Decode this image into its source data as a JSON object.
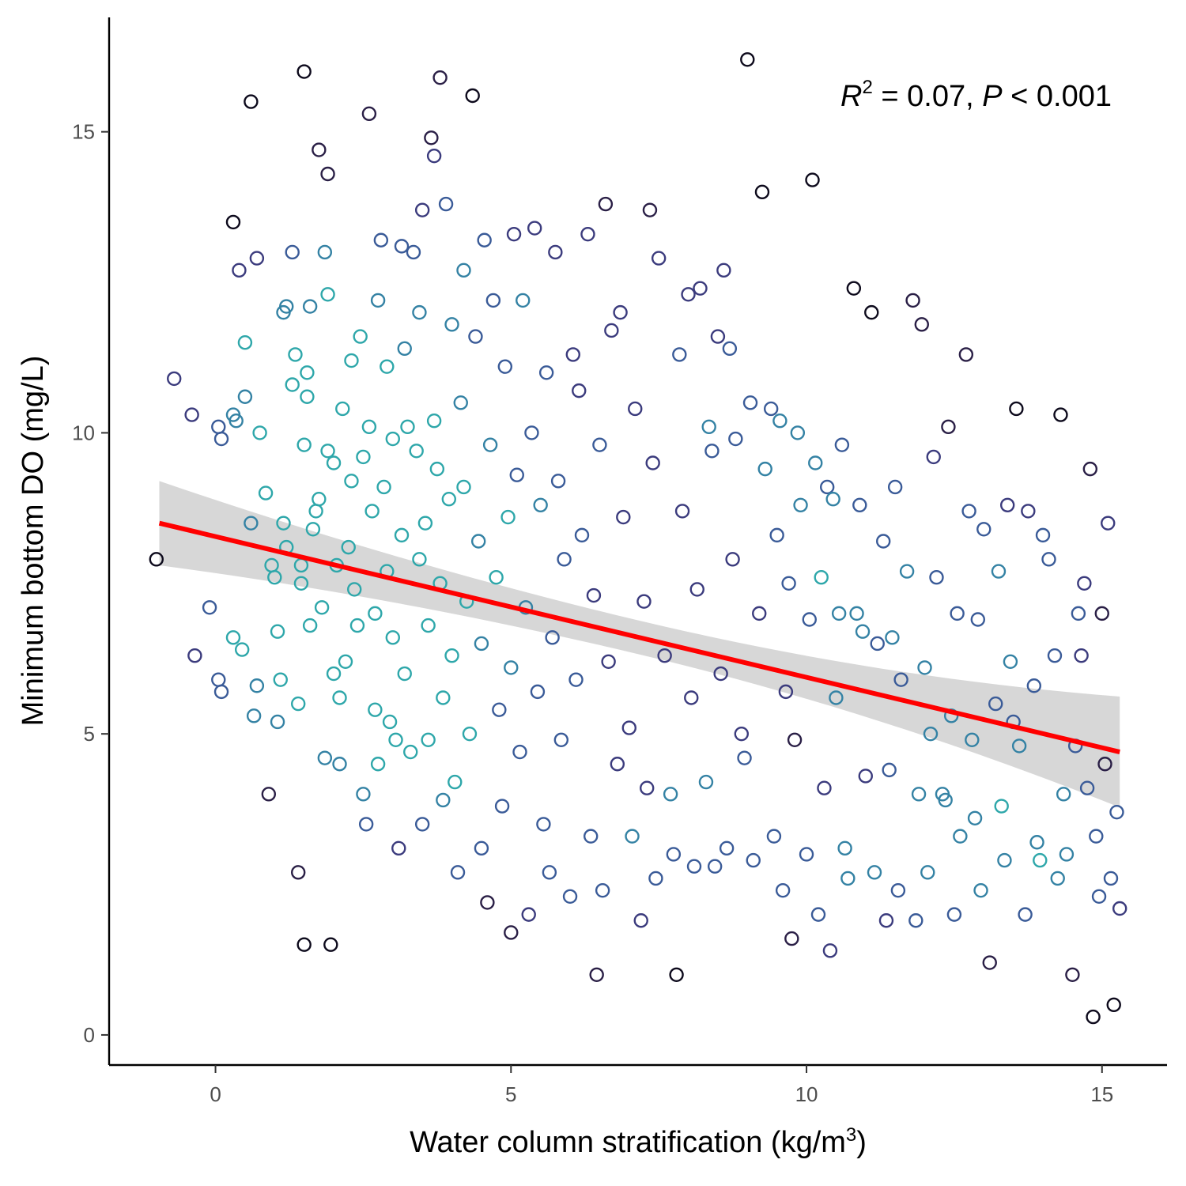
{
  "chart_data": {
    "type": "scatter",
    "xlabel_main": "Water column stratification (kg/m",
    "xlabel_sup": "3",
    "xlabel_end": ")",
    "ylabel": "Minimum bottom DO (mg/L)",
    "xlim": [
      -1.8,
      16.1
    ],
    "ylim": [
      -0.5,
      16.9
    ],
    "xticks": [
      0,
      5,
      10,
      15
    ],
    "yticks": [
      0,
      5,
      10,
      15
    ],
    "grid": false,
    "legend": "none",
    "annotation": {
      "r_label": "R",
      "r_sup": "2",
      "r_value": " = 0.07, ",
      "p_label": "P",
      "p_value": " < 0.001"
    },
    "regression": {
      "x_start": -0.95,
      "x_end": 15.3,
      "y_start": 8.5,
      "y_end": 4.7,
      "ci_start": 0.7,
      "ci_end": 0.92,
      "color": "#ff0000",
      "ci_color": "#d3d3d3"
    },
    "density_colors": [
      "#0d0a1c",
      "#2a1f46",
      "#3b3b7d",
      "#3a5b98",
      "#3482a4",
      "#2ea7aa"
    ],
    "points": [
      [
        -1.0,
        7.9
      ],
      [
        -0.7,
        10.9
      ],
      [
        -0.4,
        10.3
      ],
      [
        -0.35,
        6.3
      ],
      [
        -0.1,
        7.1
      ],
      [
        0.05,
        10.1
      ],
      [
        0.05,
        5.9
      ],
      [
        0.1,
        9.9
      ],
      [
        0.1,
        5.7
      ],
      [
        0.3,
        13.5
      ],
      [
        0.3,
        6.6
      ],
      [
        0.3,
        10.3
      ],
      [
        0.35,
        10.2
      ],
      [
        0.4,
        12.7
      ],
      [
        0.45,
        6.4
      ],
      [
        0.5,
        10.6
      ],
      [
        0.5,
        11.5
      ],
      [
        0.6,
        8.5
      ],
      [
        0.6,
        15.5
      ],
      [
        0.65,
        5.3
      ],
      [
        0.7,
        5.8
      ],
      [
        0.7,
        12.9
      ],
      [
        0.75,
        10.0
      ],
      [
        0.85,
        9.0
      ],
      [
        0.9,
        4.0
      ],
      [
        0.95,
        7.8
      ],
      [
        1.0,
        7.6
      ],
      [
        1.05,
        6.7
      ],
      [
        1.05,
        5.2
      ],
      [
        1.1,
        5.9
      ],
      [
        1.15,
        8.5
      ],
      [
        1.15,
        12.0
      ],
      [
        1.2,
        8.1
      ],
      [
        1.2,
        12.1
      ],
      [
        1.3,
        13.0
      ],
      [
        1.3,
        10.8
      ],
      [
        1.35,
        11.3
      ],
      [
        1.4,
        5.5
      ],
      [
        1.4,
        2.7
      ],
      [
        1.45,
        7.5
      ],
      [
        1.45,
        7.8
      ],
      [
        1.5,
        9.8
      ],
      [
        1.5,
        16.0
      ],
      [
        1.5,
        1.5
      ],
      [
        1.55,
        10.6
      ],
      [
        1.55,
        11.0
      ],
      [
        1.6,
        6.8
      ],
      [
        1.6,
        12.1
      ],
      [
        1.65,
        8.4
      ],
      [
        1.7,
        8.7
      ],
      [
        1.75,
        14.7
      ],
      [
        1.75,
        8.9
      ],
      [
        1.8,
        7.1
      ],
      [
        1.85,
        13.0
      ],
      [
        1.85,
        4.6
      ],
      [
        1.9,
        14.3
      ],
      [
        1.9,
        9.7
      ],
      [
        1.9,
        12.3
      ],
      [
        1.95,
        1.5
      ],
      [
        2.0,
        6.0
      ],
      [
        2.0,
        9.5
      ],
      [
        2.05,
        7.8
      ],
      [
        2.1,
        5.6
      ],
      [
        2.1,
        4.5
      ],
      [
        2.15,
        10.4
      ],
      [
        2.2,
        6.2
      ],
      [
        2.25,
        8.1
      ],
      [
        2.3,
        9.2
      ],
      [
        2.3,
        11.2
      ],
      [
        2.35,
        7.4
      ],
      [
        2.4,
        6.8
      ],
      [
        2.45,
        11.6
      ],
      [
        2.5,
        9.6
      ],
      [
        2.5,
        4.0
      ],
      [
        2.55,
        3.5
      ],
      [
        2.6,
        10.1
      ],
      [
        2.6,
        15.3
      ],
      [
        2.65,
        8.7
      ],
      [
        2.7,
        5.4
      ],
      [
        2.7,
        7.0
      ],
      [
        2.75,
        12.2
      ],
      [
        2.75,
        4.5
      ],
      [
        2.8,
        13.2
      ],
      [
        2.85,
        9.1
      ],
      [
        2.9,
        7.7
      ],
      [
        2.9,
        11.1
      ],
      [
        2.95,
        5.2
      ],
      [
        3.0,
        9.9
      ],
      [
        3.0,
        6.6
      ],
      [
        3.05,
        4.9
      ],
      [
        3.1,
        3.1
      ],
      [
        3.15,
        13.1
      ],
      [
        3.15,
        8.3
      ],
      [
        3.2,
        11.4
      ],
      [
        3.2,
        6.0
      ],
      [
        3.25,
        10.1
      ],
      [
        3.3,
        4.7
      ],
      [
        3.35,
        13.0
      ],
      [
        3.4,
        9.7
      ],
      [
        3.45,
        7.9
      ],
      [
        3.45,
        12.0
      ],
      [
        3.5,
        13.7
      ],
      [
        3.5,
        3.5
      ],
      [
        3.55,
        8.5
      ],
      [
        3.6,
        6.8
      ],
      [
        3.6,
        4.9
      ],
      [
        3.65,
        14.9
      ],
      [
        3.7,
        10.2
      ],
      [
        3.7,
        14.6
      ],
      [
        3.75,
        9.4
      ],
      [
        3.8,
        7.5
      ],
      [
        3.8,
        15.9
      ],
      [
        3.85,
        5.6
      ],
      [
        3.85,
        3.9
      ],
      [
        3.9,
        13.8
      ],
      [
        3.95,
        8.9
      ],
      [
        4.0,
        11.8
      ],
      [
        4.0,
        6.3
      ],
      [
        4.05,
        4.2
      ],
      [
        4.1,
        2.7
      ],
      [
        4.15,
        10.5
      ],
      [
        4.2,
        9.1
      ],
      [
        4.2,
        12.7
      ],
      [
        4.25,
        7.2
      ],
      [
        4.3,
        5.0
      ],
      [
        4.35,
        15.6
      ],
      [
        4.4,
        11.6
      ],
      [
        4.45,
        8.2
      ],
      [
        4.5,
        6.5
      ],
      [
        4.5,
        3.1
      ],
      [
        4.55,
        13.2
      ],
      [
        4.6,
        2.2
      ],
      [
        4.65,
        9.8
      ],
      [
        4.7,
        12.2
      ],
      [
        4.75,
        7.6
      ],
      [
        4.8,
        5.4
      ],
      [
        4.85,
        3.8
      ],
      [
        4.9,
        11.1
      ],
      [
        4.95,
        8.6
      ],
      [
        5.0,
        1.7
      ],
      [
        5.0,
        6.1
      ],
      [
        5.05,
        13.3
      ],
      [
        5.1,
        9.3
      ],
      [
        5.15,
        4.7
      ],
      [
        5.2,
        12.2
      ],
      [
        5.25,
        7.1
      ],
      [
        5.3,
        2.0
      ],
      [
        5.35,
        10.0
      ],
      [
        5.4,
        13.4
      ],
      [
        5.45,
        5.7
      ],
      [
        5.5,
        8.8
      ],
      [
        5.55,
        3.5
      ],
      [
        5.6,
        11.0
      ],
      [
        5.65,
        2.7
      ],
      [
        5.7,
        6.6
      ],
      [
        5.75,
        13.0
      ],
      [
        5.8,
        9.2
      ],
      [
        5.85,
        4.9
      ],
      [
        5.9,
        7.9
      ],
      [
        6.0,
        2.3
      ],
      [
        6.05,
        11.3
      ],
      [
        6.1,
        5.9
      ],
      [
        6.15,
        10.7
      ],
      [
        6.2,
        8.3
      ],
      [
        6.3,
        13.3
      ],
      [
        6.35,
        3.3
      ],
      [
        6.4,
        7.3
      ],
      [
        6.45,
        1.0
      ],
      [
        6.5,
        9.8
      ],
      [
        6.55,
        2.4
      ],
      [
        6.6,
        13.8
      ],
      [
        6.65,
        6.2
      ],
      [
        6.7,
        11.7
      ],
      [
        6.8,
        4.5
      ],
      [
        6.85,
        12.0
      ],
      [
        6.9,
        8.6
      ],
      [
        7.0,
        5.1
      ],
      [
        7.05,
        3.3
      ],
      [
        7.1,
        10.4
      ],
      [
        7.2,
        1.9
      ],
      [
        7.25,
        7.2
      ],
      [
        7.3,
        4.1
      ],
      [
        7.35,
        13.7
      ],
      [
        7.4,
        9.5
      ],
      [
        7.45,
        2.6
      ],
      [
        7.5,
        12.9
      ],
      [
        7.6,
        6.3
      ],
      [
        7.7,
        4.0
      ],
      [
        7.75,
        3.0
      ],
      [
        7.8,
        1.0
      ],
      [
        7.85,
        11.3
      ],
      [
        7.9,
        8.7
      ],
      [
        8.0,
        12.3
      ],
      [
        8.05,
        5.6
      ],
      [
        8.1,
        2.8
      ],
      [
        8.15,
        7.4
      ],
      [
        8.2,
        12.4
      ],
      [
        8.3,
        4.2
      ],
      [
        8.35,
        10.1
      ],
      [
        8.4,
        9.7
      ],
      [
        8.45,
        2.8
      ],
      [
        8.5,
        11.6
      ],
      [
        8.55,
        6.0
      ],
      [
        8.6,
        12.7
      ],
      [
        8.65,
        3.1
      ],
      [
        8.7,
        11.4
      ],
      [
        8.75,
        7.9
      ],
      [
        8.8,
        9.9
      ],
      [
        8.9,
        5.0
      ],
      [
        8.95,
        4.6
      ],
      [
        9.0,
        16.2
      ],
      [
        9.05,
        10.5
      ],
      [
        9.1,
        2.9
      ],
      [
        9.2,
        7.0
      ],
      [
        9.25,
        14.0
      ],
      [
        9.3,
        9.4
      ],
      [
        9.4,
        10.4
      ],
      [
        9.45,
        3.3
      ],
      [
        9.5,
        8.3
      ],
      [
        9.55,
        10.2
      ],
      [
        9.6,
        2.4
      ],
      [
        9.65,
        5.7
      ],
      [
        9.7,
        7.5
      ],
      [
        9.75,
        1.6
      ],
      [
        9.8,
        4.9
      ],
      [
        9.85,
        10.0
      ],
      [
        9.9,
        8.8
      ],
      [
        10.0,
        3.0
      ],
      [
        10.05,
        6.9
      ],
      [
        10.1,
        14.2
      ],
      [
        10.15,
        9.5
      ],
      [
        10.2,
        2.0
      ],
      [
        10.25,
        7.6
      ],
      [
        10.3,
        4.1
      ],
      [
        10.35,
        9.1
      ],
      [
        10.4,
        1.4
      ],
      [
        10.45,
        8.9
      ],
      [
        10.5,
        5.6
      ],
      [
        10.55,
        7.0
      ],
      [
        10.6,
        9.8
      ],
      [
        10.65,
        3.1
      ],
      [
        10.7,
        2.6
      ],
      [
        10.8,
        12.4
      ],
      [
        10.85,
        7.0
      ],
      [
        10.9,
        8.8
      ],
      [
        10.95,
        6.7
      ],
      [
        11.0,
        4.3
      ],
      [
        11.1,
        12.0
      ],
      [
        11.15,
        2.7
      ],
      [
        11.2,
        6.5
      ],
      [
        11.3,
        8.2
      ],
      [
        11.35,
        1.9
      ],
      [
        11.4,
        4.4
      ],
      [
        11.45,
        6.6
      ],
      [
        11.5,
        9.1
      ],
      [
        11.55,
        2.4
      ],
      [
        11.6,
        5.9
      ],
      [
        11.7,
        7.7
      ],
      [
        11.8,
        12.2
      ],
      [
        11.85,
        1.9
      ],
      [
        11.9,
        4.0
      ],
      [
        11.95,
        11.8
      ],
      [
        12.0,
        6.1
      ],
      [
        12.05,
        2.7
      ],
      [
        12.1,
        5.0
      ],
      [
        12.15,
        9.6
      ],
      [
        12.2,
        7.6
      ],
      [
        12.3,
        4.0
      ],
      [
        12.35,
        3.9
      ],
      [
        12.4,
        10.1
      ],
      [
        12.45,
        5.3
      ],
      [
        12.5,
        2.0
      ],
      [
        12.55,
        7.0
      ],
      [
        12.6,
        3.3
      ],
      [
        12.7,
        11.3
      ],
      [
        12.75,
        8.7
      ],
      [
        12.8,
        4.9
      ],
      [
        12.85,
        3.6
      ],
      [
        12.9,
        6.9
      ],
      [
        12.95,
        2.4
      ],
      [
        13.0,
        8.4
      ],
      [
        13.1,
        1.2
      ],
      [
        13.2,
        5.5
      ],
      [
        13.25,
        7.7
      ],
      [
        13.3,
        3.8
      ],
      [
        13.35,
        2.9
      ],
      [
        13.4,
        8.8
      ],
      [
        13.45,
        6.2
      ],
      [
        13.5,
        5.2
      ],
      [
        13.55,
        10.4
      ],
      [
        13.6,
        4.8
      ],
      [
        13.7,
        2.0
      ],
      [
        13.75,
        8.7
      ],
      [
        13.85,
        5.8
      ],
      [
        13.9,
        3.2
      ],
      [
        13.95,
        2.9
      ],
      [
        14.0,
        8.3
      ],
      [
        14.1,
        7.9
      ],
      [
        14.2,
        6.3
      ],
      [
        14.25,
        2.6
      ],
      [
        14.3,
        10.3
      ],
      [
        14.35,
        4.0
      ],
      [
        14.4,
        3.0
      ],
      [
        14.5,
        1.0
      ],
      [
        14.55,
        4.8
      ],
      [
        14.6,
        7.0
      ],
      [
        14.65,
        6.3
      ],
      [
        14.7,
        7.5
      ],
      [
        14.75,
        4.1
      ],
      [
        14.8,
        9.4
      ],
      [
        14.85,
        0.3
      ],
      [
        14.9,
        3.3
      ],
      [
        14.95,
        2.3
      ],
      [
        15.0,
        7.0
      ],
      [
        15.05,
        4.5
      ],
      [
        15.1,
        8.5
      ],
      [
        15.15,
        2.6
      ],
      [
        15.2,
        0.5
      ],
      [
        15.25,
        3.7
      ],
      [
        15.3,
        2.1
      ]
    ]
  }
}
